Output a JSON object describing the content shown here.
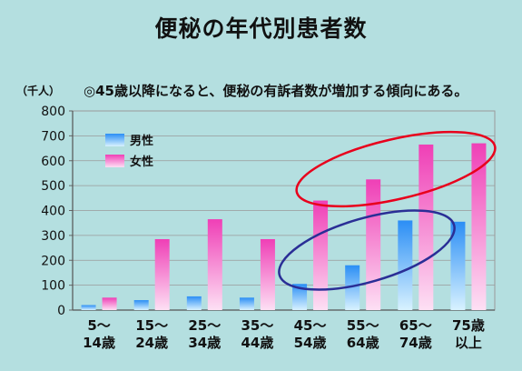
{
  "title": "便秘の年代別患者数",
  "unit": "（千人）",
  "note": "◎45歳以降になると、便秘の有訴者数が増加する傾向にある。",
  "colors": {
    "male_top": "#2b8ef5",
    "male_bottom": "#d8f2ff",
    "female_top": "#ef3fb6",
    "female_bottom": "#fde0f4",
    "red_ellipse": "#e8001c",
    "blue_ellipse": "#2a2e96",
    "background": "#b4dfe0"
  },
  "chart_data": {
    "type": "bar",
    "categories": [
      "5～14歳",
      "15～24歳",
      "25～34歳",
      "35～44歳",
      "45～54歳",
      "55～64歳",
      "65～74歳",
      "75歳以上"
    ],
    "category_lines": [
      [
        "5～",
        "14歳"
      ],
      [
        "15～",
        "24歳"
      ],
      [
        "25～",
        "34歳"
      ],
      [
        "35～",
        "44歳"
      ],
      [
        "45～",
        "54歳"
      ],
      [
        "55～",
        "64歳"
      ],
      [
        "65～",
        "74歳"
      ],
      [
        "75歳",
        "以上"
      ]
    ],
    "series": [
      {
        "name": "男性",
        "values": [
          20,
          40,
          55,
          50,
          105,
          180,
          360,
          355
        ]
      },
      {
        "name": "女性",
        "values": [
          50,
          285,
          365,
          285,
          440,
          525,
          665,
          670
        ]
      }
    ],
    "ylabel": "（千人）",
    "ylim": [
      0,
      800
    ],
    "yticks": [
      0,
      100,
      200,
      300,
      400,
      500,
      600,
      700,
      800
    ],
    "legend": "top-left",
    "annotations": [
      {
        "shape": "ellipse",
        "color": "red",
        "covers": "女性 45～54歳 through 75歳以上"
      },
      {
        "shape": "ellipse",
        "color": "blue",
        "covers": "男性 45～54歳 through 75歳以上"
      }
    ]
  }
}
